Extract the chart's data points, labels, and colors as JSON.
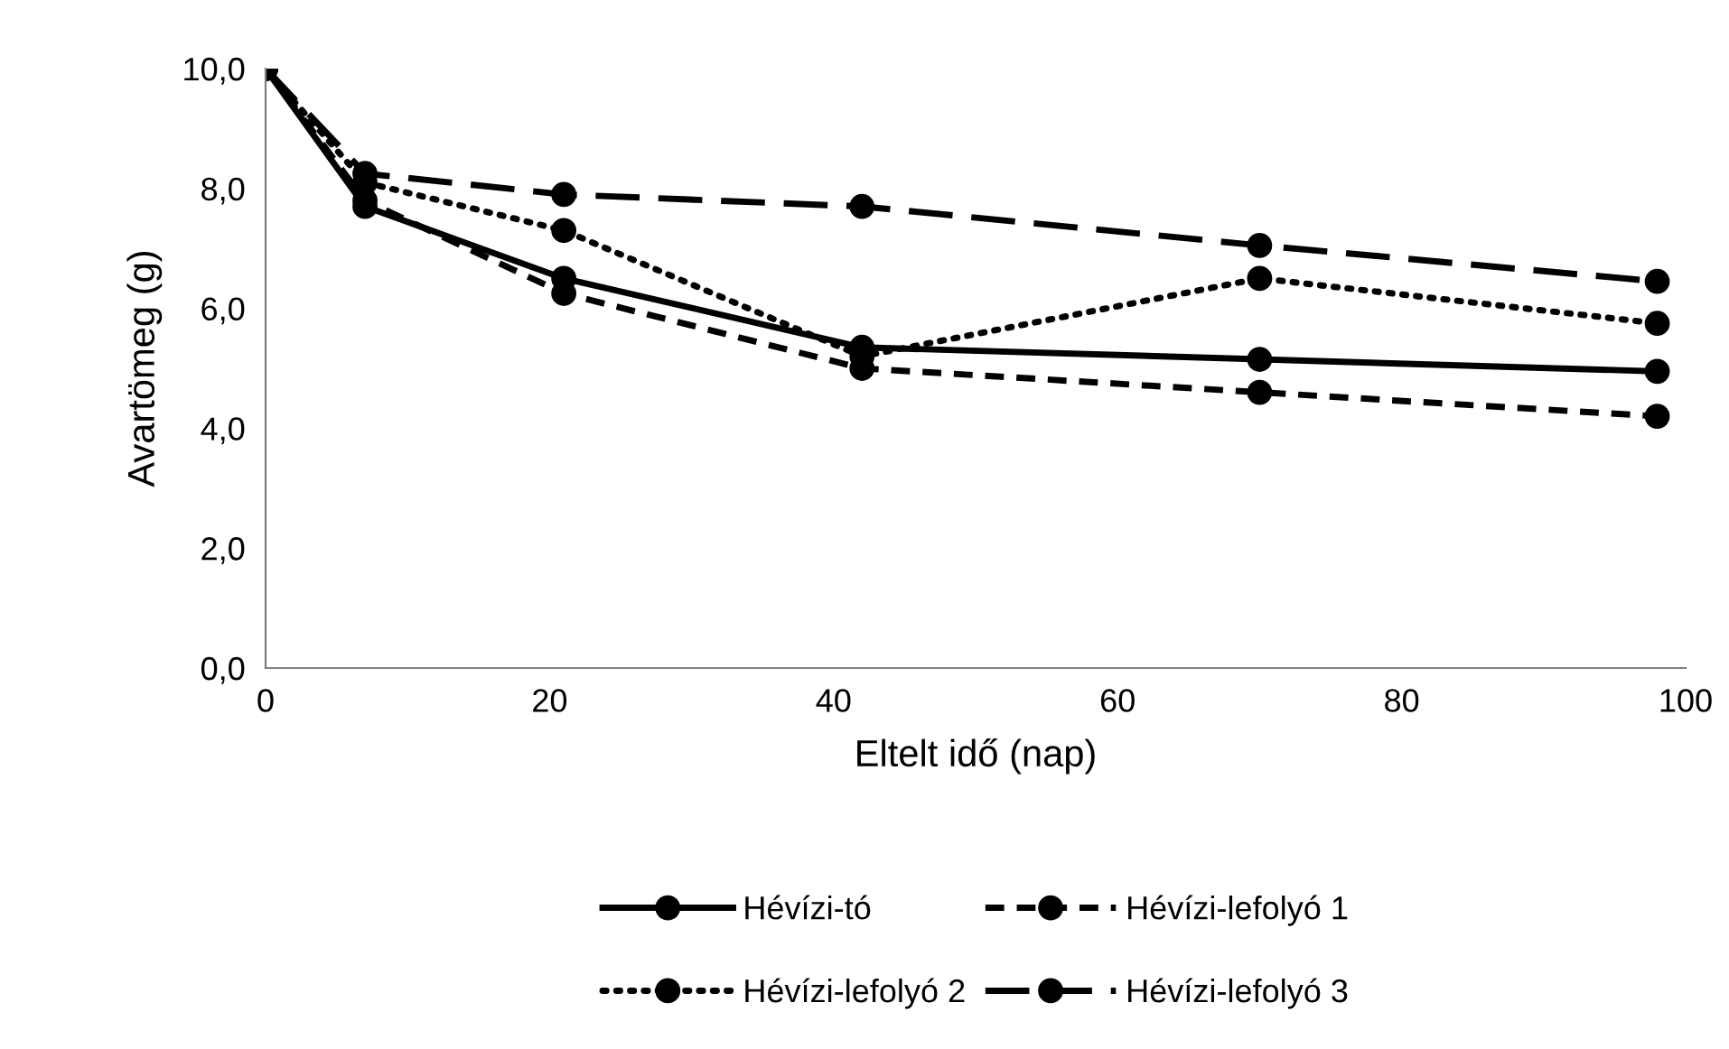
{
  "chart_data": {
    "type": "line",
    "xlabel": "Eltelt idő (nap)",
    "ylabel": "Avartömeg (g)",
    "x": [
      0,
      7,
      21,
      42,
      70,
      98
    ],
    "series": [
      {
        "name": "Hévízi-tó",
        "color": "#000000",
        "line_style": "solid",
        "values": [
          10.0,
          7.7,
          6.5,
          5.35,
          5.15,
          4.95
        ]
      },
      {
        "name": "Hévízi-lefolyó 1",
        "color": "#000000",
        "line_style": "dashed",
        "values": [
          10.0,
          7.8,
          6.25,
          5.0,
          4.6,
          4.2
        ]
      },
      {
        "name": "Hévízi-lefolyó 2",
        "color": "#000000",
        "line_style": "dotted",
        "values": [
          10.0,
          8.1,
          7.3,
          5.2,
          6.5,
          5.75
        ]
      },
      {
        "name": "Hévízi-lefolyó 3",
        "color": "#000000",
        "line_style": "dashed",
        "values": [
          10.0,
          8.25,
          7.9,
          7.7,
          7.05,
          6.45
        ]
      }
    ],
    "xlim": [
      0,
      100
    ],
    "xticks": [
      0,
      20,
      40,
      60,
      80,
      100
    ],
    "ylim": [
      0,
      10
    ],
    "yticks": [
      {
        "value": 0,
        "label": "0,0"
      },
      {
        "value": 2,
        "label": "2,0"
      },
      {
        "value": 4,
        "label": "4,0"
      },
      {
        "value": 6,
        "label": "6,0"
      },
      {
        "value": 8,
        "label": "8,0"
      },
      {
        "value": 10,
        "label": "10,0"
      }
    ],
    "marker": "circle",
    "grid": false,
    "legend": "bottom"
  }
}
